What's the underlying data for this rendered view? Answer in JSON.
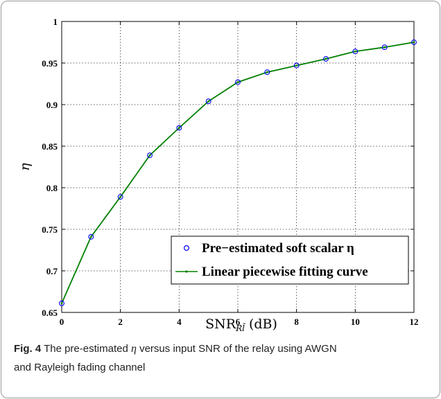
{
  "chart_data": {
    "type": "line",
    "xlabel": "SNR",
    "xlabel_sub": "Rl̄",
    "xlabel_unit": "(dB)",
    "ylabel": "η",
    "xlim": [
      0,
      12
    ],
    "ylim": [
      0.65,
      1.0
    ],
    "xticks": [
      0,
      2,
      4,
      6,
      8,
      10,
      12
    ],
    "yticks": [
      0.65,
      0.7,
      0.75,
      0.8,
      0.85,
      0.9,
      0.95,
      1.0
    ],
    "ytick_labels": [
      "0.65",
      "0.7",
      "0.75",
      "0.8",
      "0.85",
      "0.9",
      "0.95",
      "1"
    ],
    "grid": true,
    "legend_position": "bottom-right",
    "series": [
      {
        "name": "Pre−estimated soft scalar η",
        "style": "markers",
        "marker": "circle",
        "color": "#0000ff",
        "x": [
          0,
          1,
          2,
          3,
          4,
          5,
          6,
          7,
          8,
          9,
          10,
          11,
          12
        ],
        "values": [
          0.661,
          0.741,
          0.789,
          0.839,
          0.872,
          0.904,
          0.927,
          0.939,
          0.947,
          0.955,
          0.964,
          0.969,
          0.975
        ]
      },
      {
        "name": "Linear piecewise fitting curve",
        "style": "line",
        "color": "#008000",
        "x": [
          0,
          1,
          2,
          3,
          4,
          5,
          6,
          7,
          8,
          9,
          10,
          11,
          12
        ],
        "values": [
          0.661,
          0.741,
          0.789,
          0.839,
          0.872,
          0.904,
          0.927,
          0.939,
          0.947,
          0.955,
          0.964,
          0.969,
          0.975
        ]
      }
    ]
  },
  "caption": {
    "label": "Fig. 4",
    "text_before": "The pre-estimated",
    "symbol": "η",
    "text_after": "versus input SNR of the relay using AWGN",
    "line2": "and Rayleigh fading channel"
  }
}
